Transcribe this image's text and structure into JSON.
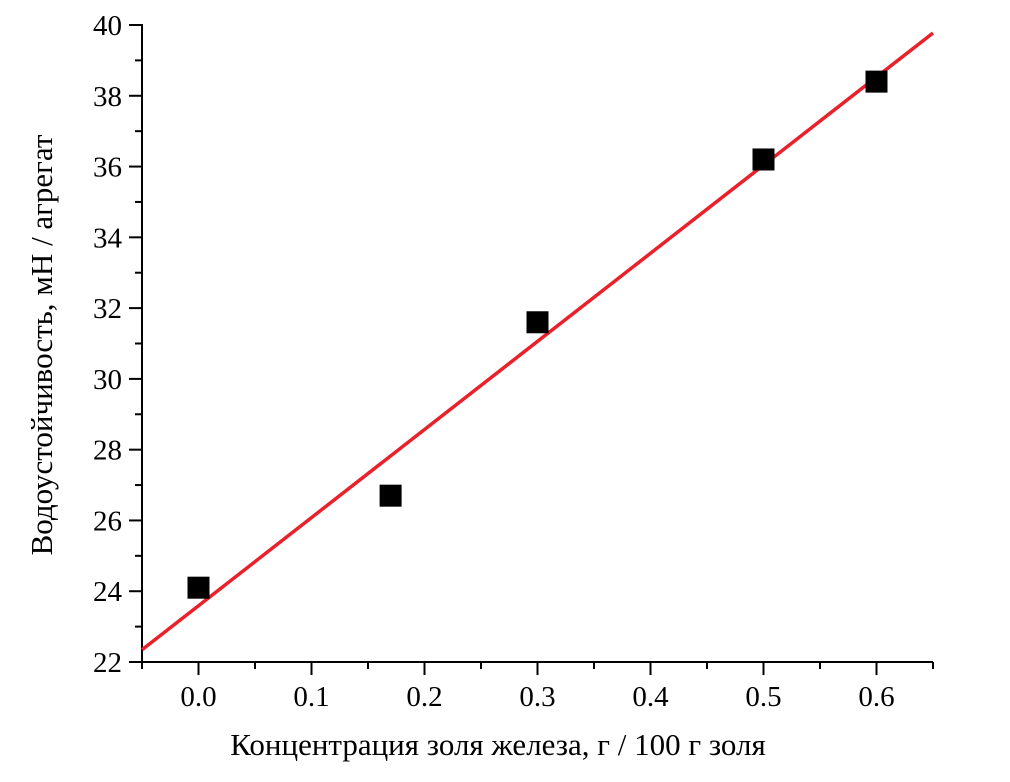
{
  "chart_data": {
    "type": "scatter",
    "title": "",
    "xlabel": "Концентрация золя железа, г / 100 г золя",
    "ylabel": "Водоустойчивость, мН / агрегат",
    "xlim": [
      -0.05,
      0.65
    ],
    "ylim": [
      22,
      40
    ],
    "xticks": [
      "0.0",
      "0.1",
      "0.2",
      "0.3",
      "0.4",
      "0.5",
      "0.6"
    ],
    "yticks": [
      "22",
      "24",
      "26",
      "28",
      "30",
      "32",
      "34",
      "36",
      "38",
      "40"
    ],
    "grid": false,
    "series": [
      {
        "name": "data",
        "type": "scatter",
        "marker": "square",
        "color": "#000000",
        "x": [
          0.0,
          0.17,
          0.3,
          0.5,
          0.6
        ],
        "y": [
          24.1,
          26.7,
          31.6,
          36.2,
          38.4
        ]
      },
      {
        "name": "fit",
        "type": "line",
        "color": "#e8212b",
        "slope": 24.9,
        "intercept": 23.59
      }
    ]
  }
}
